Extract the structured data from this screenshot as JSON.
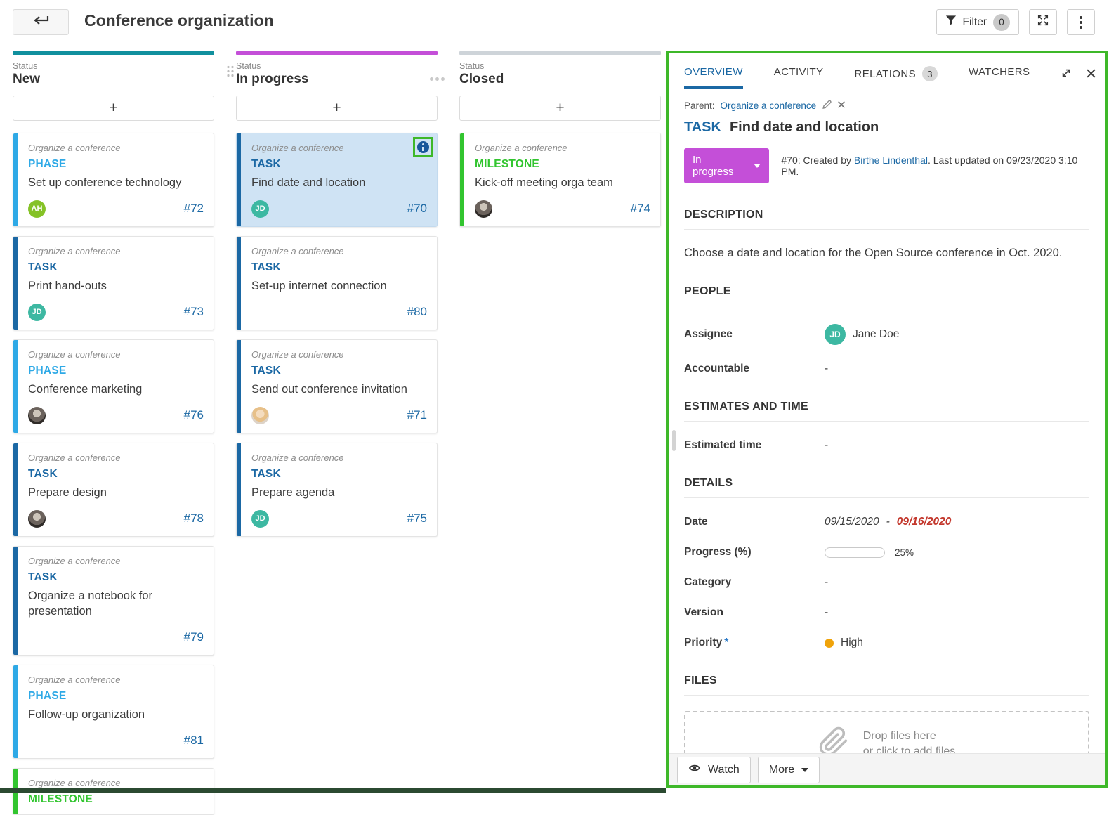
{
  "colors": {
    "column_new_accent": "#11909e",
    "column_in_progress_accent": "#c44fd8",
    "column_closed_accent": "#ced4d9",
    "phase_blue": "#2ea9e6",
    "task_blue": "#1b68a4",
    "milestone_green": "#32c52f",
    "selected_card_bg": "#cfe3f4",
    "highlight_green": "#3eb829",
    "status_pill_magenta": "#c44fd8",
    "priority_high_dot": "#f0a30a",
    "overdue_date_red": "#c3372c",
    "link_blue": "#1b68a4",
    "avatar_green": "#85c226",
    "avatar_teal": "#3db8a2"
  },
  "header": {
    "title": "Conference organization",
    "filter_label": "Filter",
    "filter_count": "0"
  },
  "board": {
    "columns": [
      {
        "eyebrow": "Status",
        "name": "New",
        "add_label": "+",
        "cards": [
          {
            "project": "Organize a conference",
            "type": "PHASE",
            "title": "Set up conference technology",
            "avatar": "AH",
            "id": "#72"
          },
          {
            "project": "Organize a conference",
            "type": "TASK",
            "title": "Print hand-outs",
            "avatar": "JD",
            "id": "#73"
          },
          {
            "project": "Organize a conference",
            "type": "PHASE",
            "title": "Conference marketing",
            "id": "#76"
          },
          {
            "project": "Organize a conference",
            "type": "TASK",
            "title": "Prepare design",
            "id": "#78"
          },
          {
            "project": "Organize a conference",
            "type": "TASK",
            "title": "Organize a notebook for presentation",
            "id": "#79"
          },
          {
            "project": "Organize a conference",
            "type": "PHASE",
            "title": "Follow-up organization",
            "id": "#81"
          },
          {
            "project": "Organize a conference",
            "type": "MILESTONE"
          }
        ]
      },
      {
        "eyebrow": "Status",
        "name": "In progress",
        "add_label": "+",
        "cards": [
          {
            "project": "Organize a conference",
            "type": "TASK",
            "title": "Find date and location",
            "avatar": "JD",
            "id": "#70"
          },
          {
            "project": "Organize a conference",
            "type": "TASK",
            "title": "Set-up internet connection",
            "id": "#80"
          },
          {
            "project": "Organize a conference",
            "type": "TASK",
            "title": "Send out conference invitation",
            "id": "#71"
          },
          {
            "project": "Organize a conference",
            "type": "TASK",
            "title": "Prepare agenda",
            "avatar": "JD",
            "id": "#75"
          }
        ]
      },
      {
        "eyebrow": "Status",
        "name": "Closed",
        "add_label": "+",
        "cards": [
          {
            "project": "Organize a conference",
            "type": "MILESTONE",
            "title": "Kick-off meeting orga team",
            "id": "#74"
          }
        ]
      }
    ]
  },
  "panel": {
    "tabs": [
      {
        "label": "OVERVIEW"
      },
      {
        "label": "ACTIVITY"
      },
      {
        "label": "RELATIONS",
        "badge": "3"
      },
      {
        "label": "WATCHERS"
      }
    ],
    "parent": {
      "label": "Parent:",
      "link": "Organize a conference"
    },
    "type": "TASK",
    "title": "Find date and location",
    "status": "In progress",
    "meta": {
      "prefix": "#70: Created by ",
      "link": "Birthe Lindenthal",
      "suffix": ". Last updated on 09/23/2020 3:10 PM."
    },
    "description": {
      "heading": "DESCRIPTION",
      "text": "Choose a date and location for the Open Source conference in Oct. 2020."
    },
    "people": {
      "heading": "PEOPLE",
      "assignee_label": "Assignee",
      "assignee_avatar": "JD",
      "assignee_name": "Jane Doe",
      "accountable_label": "Accountable",
      "accountable_value": "-"
    },
    "estimates": {
      "heading": "ESTIMATES AND TIME",
      "estimated_time_label": "Estimated time",
      "estimated_time_value": "-"
    },
    "details": {
      "heading": "DETAILS",
      "date_label": "Date",
      "date_start": "09/15/2020",
      "date_separator": " - ",
      "date_end": "09/16/2020",
      "progress_label": "Progress (%)",
      "progress_percent": 25,
      "progress_value": "25%",
      "category_label": "Category",
      "category_value": "-",
      "version_label": "Version",
      "version_value": "-",
      "priority_label": "Priority",
      "priority_star": "*",
      "priority_value": "High"
    },
    "files": {
      "heading": "FILES",
      "drop_line1": "Drop files here",
      "drop_line2": "or click to add files"
    },
    "footer": {
      "watch_label": "Watch",
      "more_label": "More"
    }
  }
}
